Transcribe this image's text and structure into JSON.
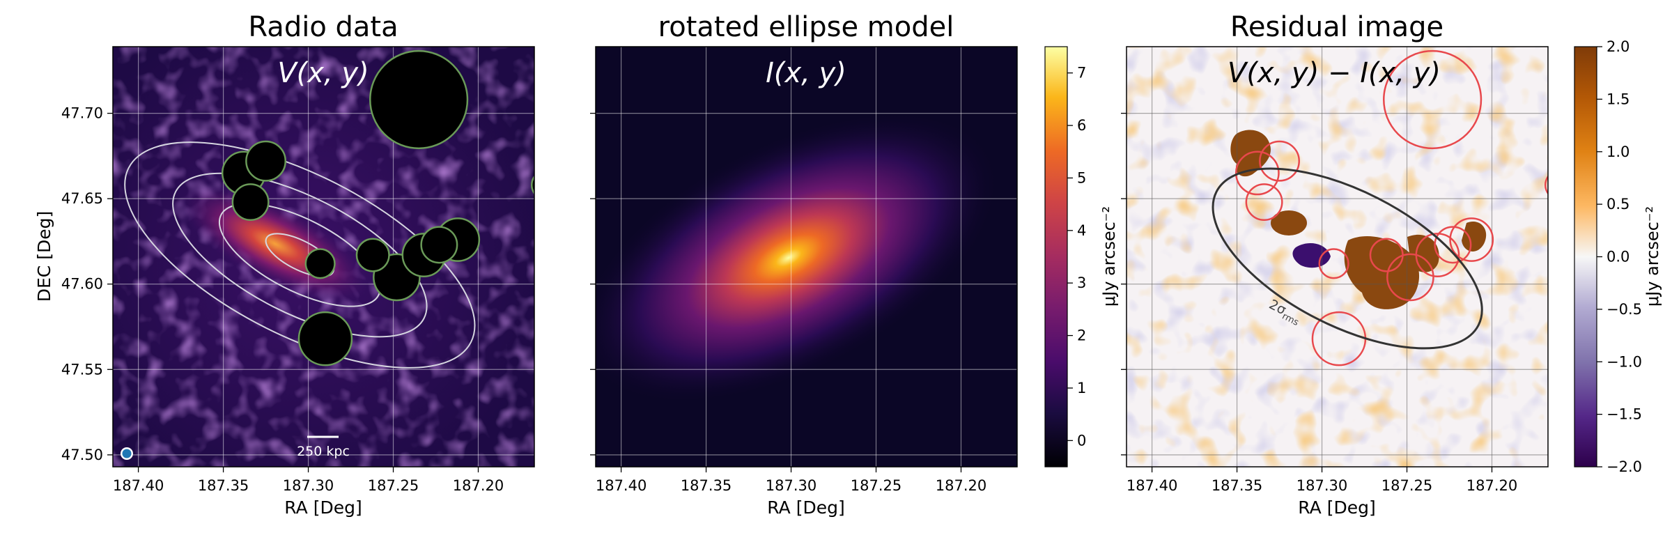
{
  "figure": {
    "colors": {
      "panel_bg_left": "#240b4d",
      "panel_bg_mid": "#0b0626",
      "contour": "#cfcfd8",
      "mask_edge_green": "#6a9a58",
      "mask_edge_red": "#e8484c",
      "residual_ellipse": "#333333",
      "beam": "#1f77b4"
    }
  },
  "chart_data": [
    {
      "type": "heatmap",
      "panel": "left",
      "title": "Radio data",
      "annotation": "V(x, y)",
      "xlabel": "RA [Deg]",
      "ylabel": "DEC [Deg]",
      "xlim": [
        187.415,
        187.167
      ],
      "ylim": [
        47.493,
        47.739
      ],
      "xticks": [
        187.4,
        187.35,
        187.3,
        187.25,
        187.2
      ],
      "xtick_labels": [
        "187.40",
        "187.35",
        "187.30",
        "187.25",
        "187.20"
      ],
      "yticks": [
        47.5,
        47.55,
        47.6,
        47.65,
        47.7
      ],
      "ytick_labels": [
        "47.50",
        "47.55",
        "47.60",
        "47.65",
        "47.70"
      ],
      "grid": true,
      "scale_bar_label": "250 kpc",
      "masks": [
        {
          "ra": 187.235,
          "dec": 47.708,
          "r": 0.0285
        },
        {
          "ra": 187.338,
          "dec": 47.665,
          "r": 0.0125
        },
        {
          "ra": 187.325,
          "dec": 47.672,
          "r": 0.0115
        },
        {
          "ra": 187.334,
          "dec": 47.648,
          "r": 0.0105
        },
        {
          "ra": 187.293,
          "dec": 47.612,
          "r": 0.0085
        },
        {
          "ra": 187.248,
          "dec": 47.604,
          "r": 0.0135
        },
        {
          "ra": 187.262,
          "dec": 47.617,
          "r": 0.0095
        },
        {
          "ra": 187.232,
          "dec": 47.617,
          "r": 0.0125
        },
        {
          "ra": 187.212,
          "dec": 47.626,
          "r": 0.0125
        },
        {
          "ra": 187.223,
          "dec": 47.623,
          "r": 0.0105
        },
        {
          "ra": 187.29,
          "dec": 47.568,
          "r": 0.0155
        },
        {
          "ra": 187.16,
          "dec": 47.658,
          "r": 0.0085
        }
      ],
      "contours": {
        "center_ra": 187.305,
        "center_dec": 47.617,
        "pa_deg": -27,
        "semi_axes": [
          [
            0.022,
            0.0085
          ],
          [
            0.052,
            0.021
          ],
          [
            0.082,
            0.034
          ],
          [
            0.113,
            0.047
          ]
        ]
      }
    },
    {
      "type": "heatmap",
      "panel": "middle",
      "title": "rotated ellipse model",
      "annotation": "I(x, y)",
      "xlabel": "RA [Deg]",
      "xlim": [
        187.415,
        187.167
      ],
      "ylim": [
        47.493,
        47.739
      ],
      "xticks": [
        187.4,
        187.35,
        187.3,
        187.25,
        187.2
      ],
      "xtick_labels": [
        "187.40",
        "187.35",
        "187.30",
        "187.25",
        "187.20"
      ],
      "yticks": [
        47.5,
        47.55,
        47.6,
        47.65,
        47.7
      ],
      "grid": true,
      "model": {
        "center_ra": 187.3,
        "center_dec": 47.616,
        "pa_deg": -27
      },
      "colorbar": {
        "label": "μJy arcsec⁻²",
        "range": [
          -0.5,
          7.5
        ],
        "ticks": [
          0,
          1,
          2,
          3,
          4,
          5,
          6,
          7
        ],
        "tick_labels": [
          "0",
          "1",
          "2",
          "3",
          "4",
          "5",
          "6",
          "7"
        ],
        "colormap": "inferno"
      }
    },
    {
      "type": "heatmap",
      "panel": "right",
      "title": "Residual image",
      "annotation": "V(x, y) − I(x, y)",
      "xlabel": "RA [Deg]",
      "xlim": [
        187.415,
        187.167
      ],
      "ylim": [
        47.493,
        47.739
      ],
      "xticks": [
        187.4,
        187.35,
        187.3,
        187.25,
        187.2
      ],
      "xtick_labels": [
        "187.40",
        "187.35",
        "187.30",
        "187.25",
        "187.20"
      ],
      "yticks": [
        47.5,
        47.55,
        47.6,
        47.65,
        47.7
      ],
      "grid": true,
      "contour_label": "2σrms",
      "sigma_ellipse": {
        "center_ra": 187.285,
        "center_dec": 47.615,
        "a": 0.0865,
        "b": 0.0395,
        "pa_deg": -27
      },
      "colorbar": {
        "label": "μJy arcsec⁻²",
        "range": [
          -2.0,
          2.0
        ],
        "ticks": [
          -2.0,
          -1.5,
          -1.0,
          -0.5,
          0.0,
          0.5,
          1.0,
          1.5,
          2.0
        ],
        "tick_labels": [
          "−2.0",
          "−1.5",
          "−1.0",
          "−0.5",
          "0.0",
          "0.5",
          "1.0",
          "1.5",
          "2.0"
        ],
        "colormap": "PuOr_r"
      }
    }
  ]
}
